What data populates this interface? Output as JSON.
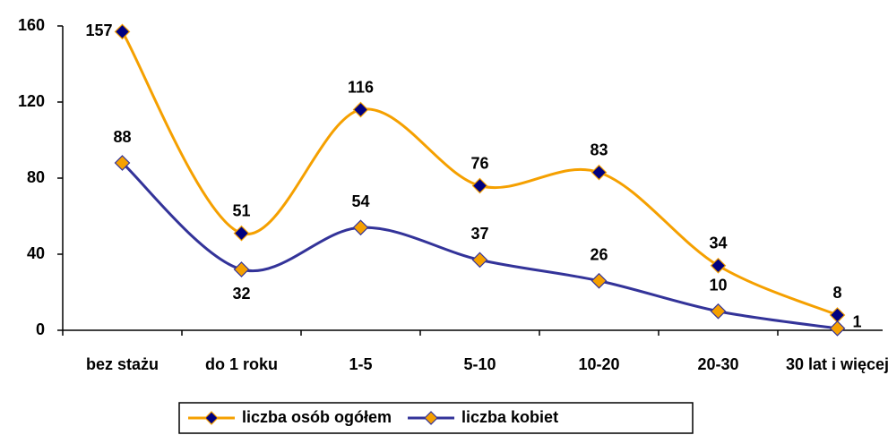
{
  "chart_data": {
    "type": "line",
    "categories": [
      "bez stażu",
      "do 1 roku",
      "1-5",
      "5-10",
      "10-20",
      "20-30",
      "30 lat i więcej"
    ],
    "series": [
      {
        "name": "liczba osób ogółem",
        "color": "#f5a000",
        "marker_color": "#000080",
        "values": [
          157,
          51,
          116,
          76,
          83,
          34,
          8
        ]
      },
      {
        "name": "liczba kobiet",
        "color": "#333399",
        "marker_color": "#f5a000",
        "values": [
          88,
          32,
          54,
          37,
          26,
          10,
          1
        ]
      }
    ],
    "ylim": [
      0,
      160
    ],
    "yticks": [
      0,
      40,
      80,
      120,
      160
    ],
    "smooth": true,
    "legend": "bottom"
  }
}
